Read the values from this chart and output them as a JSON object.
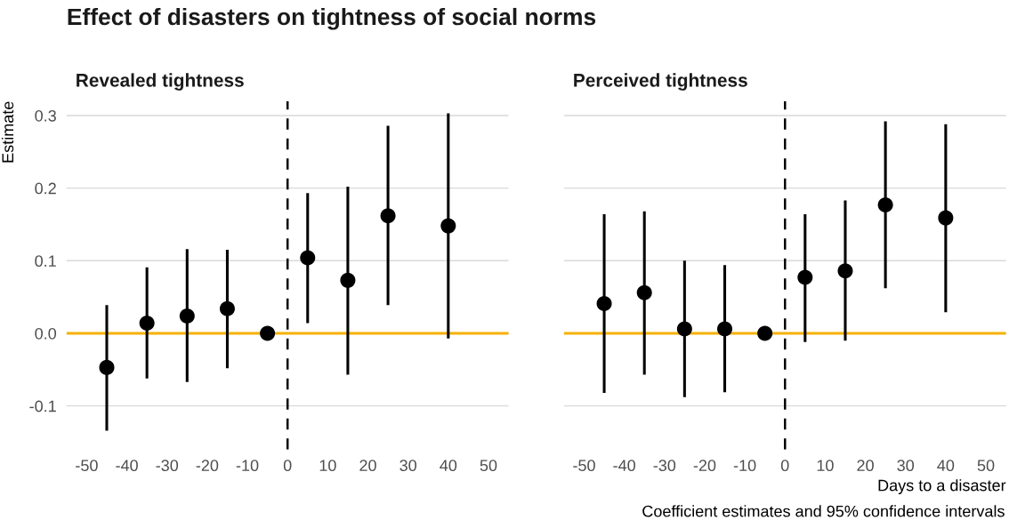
{
  "chart_data": [
    {
      "type": "scatter",
      "title": "Effect of disasters on tightness of social norms",
      "subtitle": "Revealed tightness",
      "ylabel": "Estimate",
      "x": [
        -45,
        -35,
        -25,
        -15,
        -5,
        5,
        15,
        25,
        40
      ],
      "values": [
        -0.047,
        0.014,
        0.024,
        0.034,
        0.0,
        0.104,
        0.073,
        0.162,
        0.148
      ],
      "errors": [
        [
          -0.134,
          0.039
        ],
        [
          -0.062,
          0.091
        ],
        [
          -0.067,
          0.116
        ],
        [
          -0.048,
          0.115
        ],
        null,
        [
          0.014,
          0.193
        ],
        [
          -0.057,
          0.202
        ],
        [
          0.039,
          0.286
        ],
        [
          -0.007,
          0.303
        ]
      ],
      "color": "#000000",
      "marker": "circle",
      "xlim": [
        -55,
        55
      ],
      "xticks": [
        -50,
        -40,
        -30,
        -20,
        -10,
        0,
        10,
        20,
        30,
        40,
        50
      ],
      "ylim": [
        -0.16,
        0.32
      ],
      "yticks": [
        -0.1,
        {
          "value": 0,
          "label": "0.0"
        },
        0.1,
        0.2,
        0.3
      ],
      "grid": "y",
      "legend": false,
      "ref_lines": [
        {
          "axis": "x",
          "value": 0,
          "color": "#000000",
          "line_style": "dashed"
        },
        {
          "axis": "y",
          "value": 0,
          "color": "#f5b100",
          "line_style": "solid"
        }
      ]
    },
    {
      "type": "scatter",
      "subtitle": "Perceived tightness",
      "xlabel": "Days to a disaster",
      "annotations": [
        "Coefficient estimates and 95% confidence intervals"
      ],
      "x": [
        -45,
        -35,
        -25,
        -15,
        -5,
        5,
        15,
        25,
        40
      ],
      "values": [
        0.041,
        0.056,
        0.006,
        0.006,
        0.0,
        0.077,
        0.086,
        0.177,
        0.159
      ],
      "errors": [
        [
          -0.082,
          0.164
        ],
        [
          -0.057,
          0.168
        ],
        [
          -0.088,
          0.1
        ],
        [
          -0.081,
          0.094
        ],
        null,
        [
          -0.012,
          0.164
        ],
        [
          -0.01,
          0.183
        ],
        [
          0.062,
          0.292
        ],
        [
          0.029,
          0.288
        ]
      ],
      "color": "#000000",
      "marker": "circle",
      "xlim": [
        -55,
        55
      ],
      "xticks": [
        -50,
        -40,
        -30,
        -20,
        -10,
        0,
        10,
        20,
        30,
        40,
        50
      ],
      "ylim": [
        -0.16,
        0.32
      ],
      "yticks": [
        -0.1,
        0,
        0.1,
        0.2,
        0.3
      ],
      "grid": "y",
      "legend": false,
      "tick_labels": "x",
      "ref_lines": [
        {
          "axis": "x",
          "value": 0,
          "color": "#000000",
          "line_style": "dashed"
        },
        {
          "axis": "y",
          "value": 0,
          "color": "#f5b100",
          "line_style": "solid"
        }
      ]
    }
  ]
}
